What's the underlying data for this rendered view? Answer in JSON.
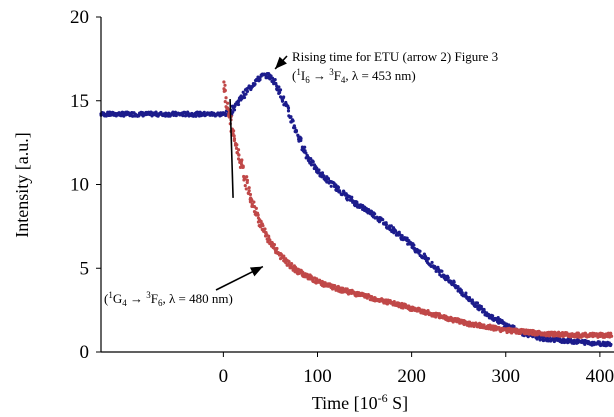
{
  "chart_data": {
    "type": "scatter",
    "title": "",
    "xlabel": "Time [10",
    "xlabel_sup": "-6",
    "xlabel_unit": " S]",
    "ylabel": "Intensity [a.u.]",
    "xlim": [
      -130,
      415
    ],
    "ylim": [
      0,
      20
    ],
    "x_ticks": [
      0,
      100,
      200,
      300,
      400
    ],
    "x_tick_labels": [
      "0",
      "100",
      "200",
      "300",
      "400"
    ],
    "y_ticks": [
      0,
      5,
      10,
      15,
      20
    ],
    "y_tick_labels": [
      "0",
      "5",
      "10",
      "15",
      "20"
    ],
    "grid": false,
    "legend": "none",
    "colors": {
      "blue": "#1c1c8c",
      "red": "#c04848",
      "axis": "#000000"
    },
    "series": [
      {
        "color": "blue",
        "x": [
          -130,
          -100,
          -60,
          -20,
          0,
          8,
          15,
          25,
          35,
          42,
          48,
          55,
          62,
          70,
          80,
          90,
          100,
          120,
          140,
          160,
          180,
          200,
          220,
          240,
          260,
          280,
          300,
          320,
          340,
          360,
          380,
          400,
          412
        ],
        "y": [
          14.2,
          14.2,
          14.2,
          14.2,
          14.2,
          14.3,
          14.9,
          15.6,
          16.2,
          16.5,
          16.5,
          16.1,
          15.3,
          14.2,
          12.8,
          11.6,
          10.8,
          9.8,
          8.9,
          8.2,
          7.3,
          6.4,
          5.3,
          4.3,
          3.2,
          2.3,
          1.6,
          1.1,
          0.8,
          0.7,
          0.6,
          0.5,
          0.5
        ]
      },
      {
        "color": "red",
        "x": [
          0,
          3,
          7,
          10,
          15,
          20,
          25,
          30,
          35,
          40,
          45,
          50,
          60,
          70,
          80,
          90,
          100,
          120,
          140,
          160,
          180,
          200,
          220,
          240,
          260,
          280,
          300,
          320,
          340,
          360,
          380,
          400,
          412
        ],
        "y": [
          16.0,
          15.0,
          14.0,
          13.0,
          12.0,
          11.0,
          10.0,
          9.0,
          8.3,
          7.6,
          7.0,
          6.5,
          5.8,
          5.2,
          4.8,
          4.5,
          4.2,
          3.8,
          3.5,
          3.2,
          2.9,
          2.6,
          2.3,
          2.0,
          1.7,
          1.5,
          1.3,
          1.2,
          1.1,
          1.05,
          1.0,
          1.0,
          1.0
        ]
      }
    ],
    "annotations": [
      {
        "text": "Rising time for ETU (arrow 2) Figure 3",
        "line2_parts": [
          "(",
          "1",
          "I",
          "6",
          " → ",
          "3",
          "F",
          "4",
          ", λ = 453 nm)"
        ],
        "arrow_to": [
          55,
          16.9
        ]
      },
      {
        "line_parts": [
          "(",
          "1",
          "G",
          "4",
          " → ",
          "3",
          "F",
          "6",
          ", λ = 480 nm)"
        ],
        "arrow_to": [
          42,
          5.1
        ]
      }
    ],
    "vertical_marker": {
      "x": 5,
      "y_top": 15.1,
      "y_bottom": 9.2
    }
  }
}
